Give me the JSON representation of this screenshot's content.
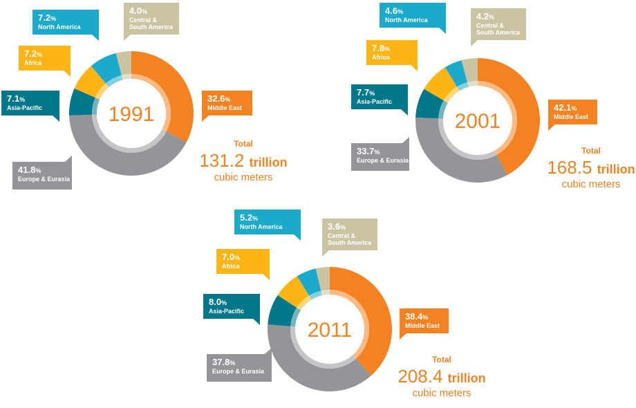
{
  "colors": {
    "Middle East": "#f58220",
    "Europe & Eurasia": "#939598",
    "Asia-Pacific": "#00778b",
    "Africa": "#fdb515",
    "North America": "#1ba9cc",
    "Central & South America": "#cbc4a2"
  },
  "chart_data": [
    {
      "type": "pie",
      "title": "1991",
      "categories": [
        "Middle East",
        "Europe & Eurasia",
        "Asia-Pacific",
        "Africa",
        "North America",
        "Central & South America"
      ],
      "values": [
        32.6,
        41.8,
        7.1,
        7.2,
        7.2,
        4.0
      ],
      "labels": [
        {
          "pct": "32.6",
          "name": "Middle East"
        },
        {
          "pct": "41.8",
          "name": "Europe & Eurasia"
        },
        {
          "pct": "7.1",
          "name": "Asia-Pacific"
        },
        {
          "pct": "7.2",
          "name": "Africa"
        },
        {
          "pct": "7.2",
          "name": "North America"
        },
        {
          "pct": "4.0",
          "name": "Central &|South America"
        }
      ],
      "total": {
        "label": "Total",
        "value": "131.2",
        "unit": "trillion",
        "unit2": "cubic meters"
      }
    },
    {
      "type": "pie",
      "title": "2001",
      "categories": [
        "Middle East",
        "Europe & Eurasia",
        "Asia-Pacific",
        "Africa",
        "North America",
        "Central & South America"
      ],
      "values": [
        42.1,
        33.7,
        7.7,
        7.8,
        4.6,
        4.2
      ],
      "labels": [
        {
          "pct": "42.1",
          "name": "Middle East"
        },
        {
          "pct": "33.7",
          "name": "Europe & Eurasia"
        },
        {
          "pct": "7.7",
          "name": "Asia-Pacific"
        },
        {
          "pct": "7.8",
          "name": "Africa"
        },
        {
          "pct": "4.6",
          "name": "North America"
        },
        {
          "pct": "4.2",
          "name": "Central &|South America"
        }
      ],
      "total": {
        "label": "Total",
        "value": "168.5",
        "unit": "trillion",
        "unit2": "cubic meters"
      }
    },
    {
      "type": "pie",
      "title": "2011",
      "categories": [
        "Middle East",
        "Europe & Eurasia",
        "Asia-Pacific",
        "Africa",
        "North America",
        "Central & South America"
      ],
      "values": [
        38.4,
        37.8,
        8.0,
        7.0,
        5.2,
        3.6
      ],
      "labels": [
        {
          "pct": "38.4",
          "name": "Middle East"
        },
        {
          "pct": "37.8",
          "name": "Europe & Eurasia"
        },
        {
          "pct": "8.0",
          "name": "Asia-Pacific"
        },
        {
          "pct": "7.0",
          "name": "Africa"
        },
        {
          "pct": "5.2",
          "name": "North America"
        },
        {
          "pct": "3.6",
          "name": "Central &|South America"
        }
      ],
      "total": {
        "label": "Total",
        "value": "208.4",
        "unit": "trillion",
        "unit2": "cubic meters"
      }
    }
  ]
}
